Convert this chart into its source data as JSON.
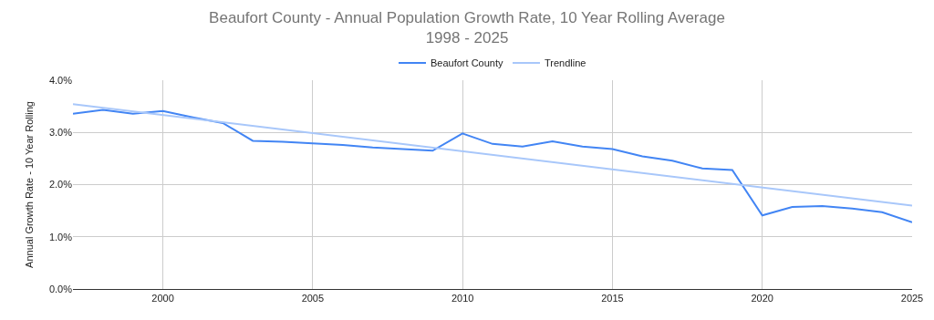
{
  "chart_data": {
    "type": "line",
    "title": "Beaufort County - Annual Population Growth Rate, 10 Year Rolling Average",
    "subtitle": "1998 - 2025",
    "ylabel": "Annual Growth Rate - 10 Year Rolling",
    "x": [
      1997,
      1998,
      1999,
      2000,
      2001,
      2002,
      2003,
      2004,
      2005,
      2006,
      2007,
      2008,
      2009,
      2010,
      2011,
      2012,
      2013,
      2014,
      2015,
      2016,
      2017,
      2018,
      2019,
      2020,
      2021,
      2022,
      2023,
      2024,
      2025
    ],
    "series": [
      {
        "name": "Beaufort County",
        "color": "#4285f4",
        "values": [
          3.36,
          3.43,
          3.36,
          3.41,
          3.29,
          3.18,
          2.84,
          2.82,
          2.79,
          2.76,
          2.71,
          2.68,
          2.65,
          2.98,
          2.78,
          2.73,
          2.83,
          2.73,
          2.68,
          2.54,
          2.46,
          2.31,
          2.28,
          1.41,
          1.57,
          1.59,
          1.54,
          1.47,
          1.28
        ]
      },
      {
        "name": "Trendline",
        "color": "#a8c7fa",
        "x": [
          1997,
          2025
        ],
        "values": [
          3.54,
          1.6
        ]
      }
    ],
    "xlim": [
      1997,
      2025
    ],
    "xticks": [
      2000,
      2005,
      2010,
      2015,
      2020,
      2025
    ],
    "ylim": [
      0,
      4
    ],
    "yticks": [
      {
        "value": 0,
        "label": "0.0%"
      },
      {
        "value": 1,
        "label": "1.0%"
      },
      {
        "value": 2,
        "label": "2.0%"
      },
      {
        "value": 3,
        "label": "3.0%"
      },
      {
        "value": 4,
        "label": "4.0%"
      }
    ],
    "grid": true,
    "legend": "top",
    "marker": "none",
    "line_style": "solid"
  }
}
